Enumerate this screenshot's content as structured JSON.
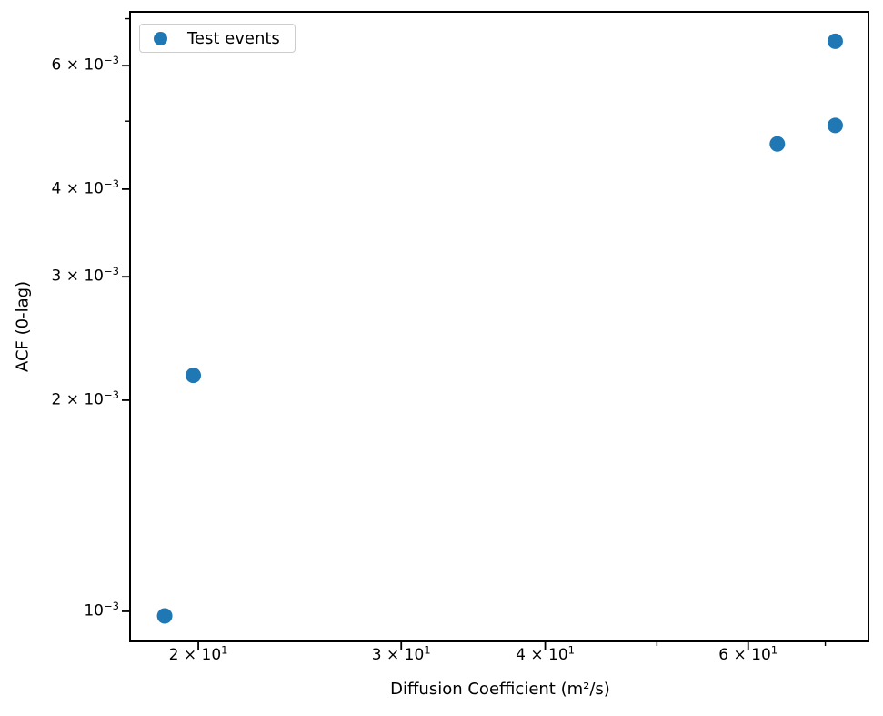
{
  "chart_data": {
    "type": "scatter",
    "title": "",
    "xlabel": "Diffusion Coefficient (m²/s)",
    "ylabel": "ACF (0-lag)",
    "xscale": "log",
    "yscale": "log",
    "xlim": [
      17.45,
      76.3
    ],
    "ylim": [
      0.000906,
      0.00716
    ],
    "grid": false,
    "legend": {
      "position": "upper left",
      "entries": [
        {
          "label": "Test events",
          "color": "#1f77b4",
          "marker": "circle"
        }
      ]
    },
    "series": [
      {
        "name": "Test events",
        "color": "#1f77b4",
        "marker": "circle",
        "marker_radius_px": 8.5,
        "points": [
          {
            "x": 18.7,
            "y": 0.000985
          },
          {
            "x": 19.8,
            "y": 0.00217
          },
          {
            "x": 63.6,
            "y": 0.00464
          },
          {
            "x": 71.4,
            "y": 0.00493
          },
          {
            "x": 71.4,
            "y": 0.0065
          }
        ]
      }
    ],
    "xticks": {
      "labeled": [
        {
          "value": 20,
          "mantissa": "2",
          "exponent": "1"
        },
        {
          "value": 30,
          "mantissa": "3",
          "exponent": "1"
        },
        {
          "value": 40,
          "mantissa": "4",
          "exponent": "1"
        },
        {
          "value": 60,
          "mantissa": "6",
          "exponent": "1"
        }
      ],
      "unlabeled": [
        50,
        70
      ]
    },
    "yticks": {
      "labeled": [
        {
          "value": 0.001,
          "mantissa": "",
          "exponent": "-3"
        },
        {
          "value": 0.002,
          "mantissa": "2",
          "exponent": "-3"
        },
        {
          "value": 0.003,
          "mantissa": "3",
          "exponent": "-3"
        },
        {
          "value": 0.004,
          "mantissa": "4",
          "exponent": "-3"
        },
        {
          "value": 0.006,
          "mantissa": "6",
          "exponent": "-3"
        }
      ],
      "unlabeled": [
        0.005,
        0.007
      ]
    },
    "colors": {
      "marker": "#1f77b4",
      "spine": "#000000",
      "tick_label": "#000000",
      "legend_border": "#cccccc",
      "background": "#ffffff"
    }
  }
}
